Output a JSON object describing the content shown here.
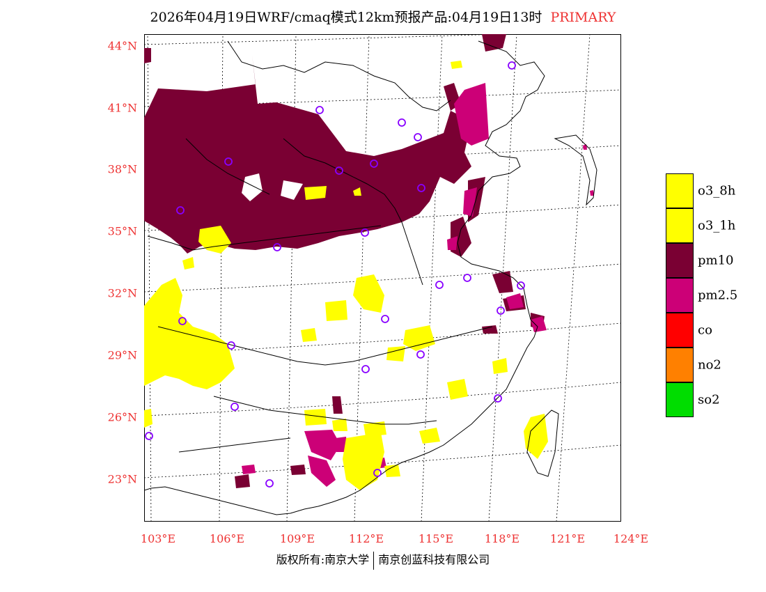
{
  "title": {
    "text": "2026年04月19日WRF/cmaq模式12km预报产品:04月19日13时",
    "tag": "PRIMARY"
  },
  "colors": {
    "o3_8h": "#ffff00",
    "o3_1h": "#ffff00",
    "pm10": "#7a0033",
    "pm2_5": "#cc0077",
    "co": "#ff0000",
    "no2": "#ff8000",
    "so2": "#00dd00",
    "station": "#8800ff",
    "axis_label": "#ee3333"
  },
  "legend": [
    {
      "label": "o3_8h",
      "color": "#ffff00"
    },
    {
      "label": "o3_1h",
      "color": "#ffff00"
    },
    {
      "label": "pm10",
      "color": "#7a0033"
    },
    {
      "label": "pm2.5",
      "color": "#cc0077"
    },
    {
      "label": "co",
      "color": "#ff0000"
    },
    {
      "label": "no2",
      "color": "#ff8000"
    },
    {
      "label": "so2",
      "color": "#00dd00"
    }
  ],
  "axes": {
    "lat_labels": [
      "44°N",
      "41°N",
      "38°N",
      "35°N",
      "32°N",
      "29°N",
      "26°N",
      "23°N"
    ],
    "lon_labels": [
      "103°E",
      "106°E",
      "109°E",
      "112°E",
      "115°E",
      "118°E",
      "121°E",
      "124°E"
    ]
  },
  "footer": {
    "left": "版权所有:南京大学",
    "right": "南京创蓝科技有限公司"
  }
}
